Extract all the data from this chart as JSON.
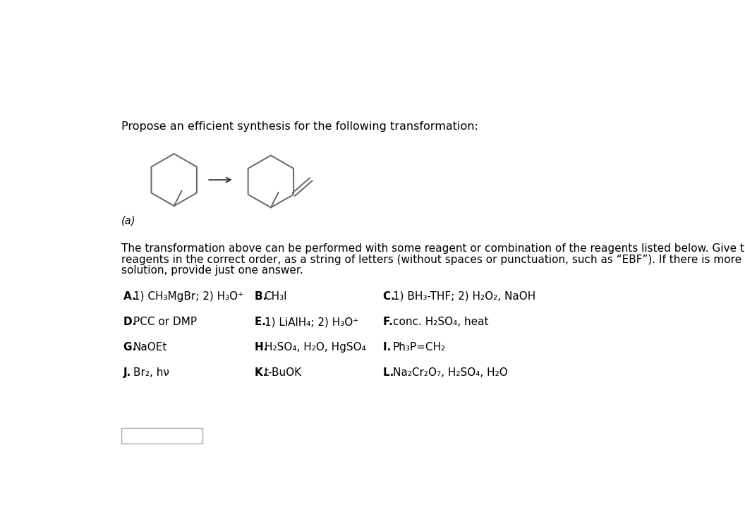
{
  "title": "Propose an efficient synthesis for the following transformation:",
  "label_a": "(a)",
  "description_line1": "The transformation above can be performed with some reagent or combination of the reagents listed below. Give the necessary",
  "description_line2": "reagents in the correct order, as a string of letters (without spaces or punctuation, such as “EBF”). If there is more than one correct",
  "description_line3": "solution, provide just one answer.",
  "reagents": [
    {
      "letter": "A",
      "bold": true,
      "text": "1) CH₃MgBr; 2) H₃O⁺"
    },
    {
      "letter": "B",
      "bold": true,
      "text": "CH₃I"
    },
    {
      "letter": "C",
      "bold": true,
      "text": "1) BH₃-THF; 2) H₂O₂, NaOH"
    },
    {
      "letter": "D",
      "bold": true,
      "text": "PCC or DMP"
    },
    {
      "letter": "E",
      "bold": true,
      "text": "1) LiAlH₄; 2) H₃O⁺"
    },
    {
      "letter": "F",
      "bold": true,
      "text": "conc. H₂SO₄, heat"
    },
    {
      "letter": "G",
      "bold": true,
      "text": "NaOEt"
    },
    {
      "letter": "H",
      "bold": true,
      "text": "H₂SO₄, H₂O, HgSO₄"
    },
    {
      "letter": "I",
      "bold": true,
      "text": "Ph₃P=CH₂"
    },
    {
      "letter": "J",
      "bold": true,
      "text": "Br₂, hν"
    },
    {
      "letter": "K",
      "bold": true,
      "text": "t-BuOK"
    },
    {
      "letter": "L",
      "bold": true,
      "text": "Na₂Cr₂O₇, H₂SO₄, H₂O"
    }
  ],
  "bg_color": "#ffffff",
  "text_color": "#000000",
  "line_color": "#666666",
  "font_size_title": 11.5,
  "font_size_body": 11,
  "font_size_reagent_letter": 11,
  "font_size_reagent_text": 11
}
